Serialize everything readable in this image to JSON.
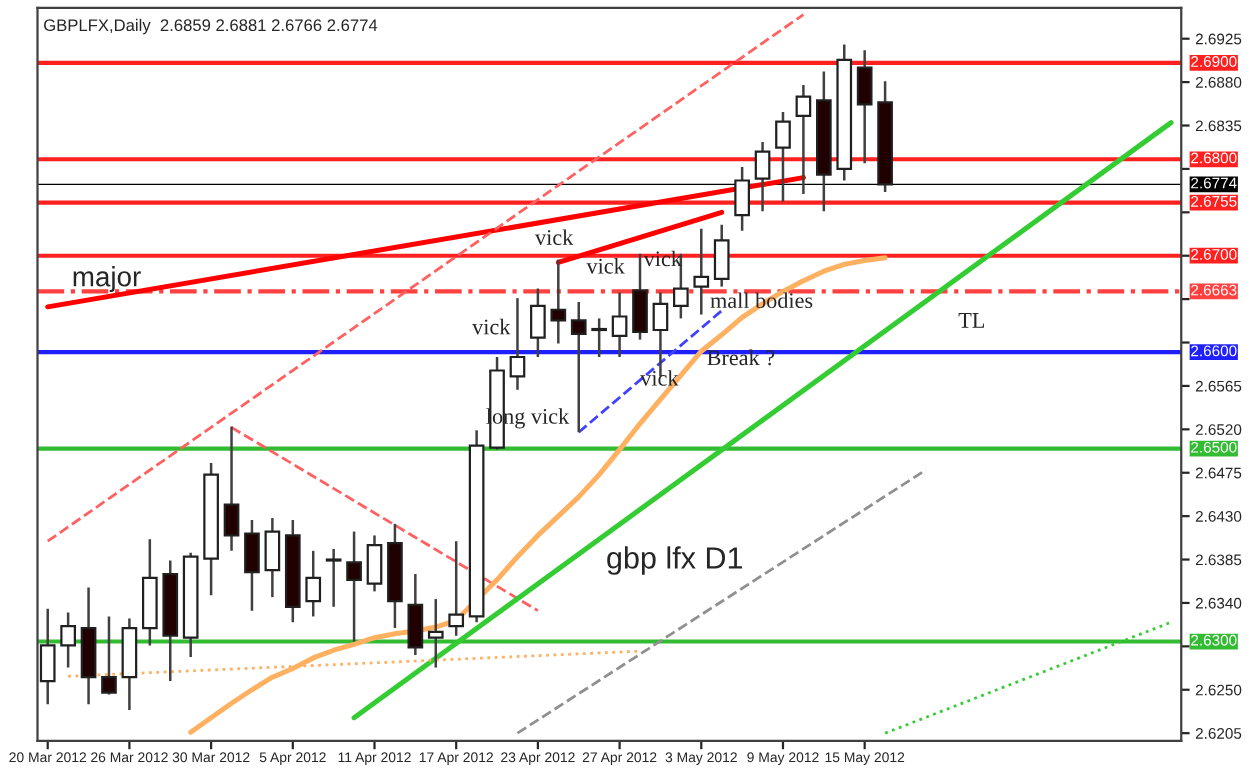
{
  "chart_data": {
    "type": "candlestick",
    "title": "GBPLFX,Daily  2.6859 2.6881 2.6766 2.6774",
    "categories": [
      "20 Mar 2012",
      null,
      null,
      null,
      "26 Mar 2012",
      null,
      null,
      null,
      "30 Mar 2012",
      null,
      null,
      null,
      "5 Apr 2012",
      null,
      null,
      null,
      "11 Apr 2012",
      null,
      null,
      null,
      "17 Apr 2012",
      null,
      null,
      null,
      "23 Apr 2012",
      null,
      null,
      null,
      "27 Apr 2012",
      null,
      null,
      null,
      "3 May 2012",
      null,
      null,
      null,
      "9 May 2012",
      null,
      null,
      null,
      "15 May 2012",
      null,
      null,
      null,
      null,
      null,
      null,
      null,
      null,
      null,
      null,
      null,
      null,
      null,
      null,
      null
    ],
    "ohlc": [
      [
        2.6259,
        2.6334,
        2.6235,
        2.6296
      ],
      [
        2.6296,
        2.633,
        2.6273,
        2.6316
      ],
      [
        2.6314,
        2.6356,
        2.6235,
        2.6263
      ],
      [
        2.6263,
        2.6326,
        2.6245,
        2.6247
      ],
      [
        2.6263,
        2.6324,
        2.6229,
        2.6314
      ],
      [
        2.6314,
        2.6406,
        2.6296,
        2.6366
      ],
      [
        2.637,
        2.6384,
        2.6259,
        2.6306
      ],
      [
        2.6304,
        2.6392,
        2.6284,
        2.6388
      ],
      [
        2.6386,
        2.6485,
        2.6348,
        2.6473
      ],
      [
        2.6442,
        2.6523,
        2.6394,
        2.641
      ],
      [
        2.6412,
        2.6426,
        2.6332,
        2.6372
      ],
      [
        2.6374,
        2.6428,
        2.6346,
        2.6414
      ],
      [
        2.641,
        2.6426,
        2.632,
        2.6336
      ],
      [
        2.6342,
        2.6394,
        2.6326,
        2.6366
      ],
      [
        2.6384,
        2.6396,
        2.6336,
        2.6385
      ],
      [
        2.6382,
        2.6414,
        2.63,
        2.6364
      ],
      [
        2.636,
        2.641,
        2.6352,
        2.64
      ],
      [
        2.6402,
        2.6422,
        2.6314,
        2.6342
      ],
      [
        2.6338,
        2.637,
        2.6286,
        2.6294
      ],
      [
        2.6304,
        2.6344,
        2.6273,
        2.631
      ],
      [
        2.6316,
        2.6404,
        2.6306,
        2.6328
      ],
      [
        2.6326,
        2.6519,
        2.632,
        2.6503
      ],
      [
        2.6501,
        2.6595,
        2.6499,
        2.6581
      ],
      [
        2.6575,
        2.6656,
        2.6561,
        2.6595
      ],
      [
        2.6615,
        2.6666,
        2.6595,
        2.6648
      ],
      [
        2.6644,
        2.6696,
        2.6609,
        2.6633
      ],
      [
        2.6633,
        2.6652,
        2.6517,
        2.6619
      ],
      [
        2.6623,
        2.6635,
        2.6595,
        2.6624
      ],
      [
        2.6617,
        2.6662,
        2.6595,
        2.6637
      ],
      [
        2.6664,
        2.6702,
        2.6613,
        2.6621
      ],
      [
        2.6623,
        2.6662,
        2.6575,
        2.665
      ],
      [
        2.6648,
        2.6702,
        2.6635,
        2.6666
      ],
      [
        2.6668,
        2.6728,
        2.6639,
        2.6678
      ],
      [
        2.6676,
        2.6732,
        2.6668,
        2.6716
      ],
      [
        2.6742,
        2.6792,
        2.6726,
        2.6778
      ],
      [
        2.678,
        2.6818,
        2.6746,
        2.6808
      ],
      [
        2.6812,
        2.6849,
        2.6756,
        2.6839
      ],
      [
        2.6845,
        2.6877,
        2.6764,
        2.6865
      ],
      [
        2.6861,
        2.6891,
        2.6746,
        2.6784
      ],
      [
        2.679,
        2.6919,
        2.6778,
        2.6903
      ],
      [
        2.6895,
        2.6913,
        2.6796,
        2.6857
      ],
      [
        2.6859,
        2.6881,
        2.6766,
        2.6774
      ],
      null,
      null,
      null,
      null,
      null,
      null,
      null,
      null,
      null,
      null,
      null,
      null,
      null,
      null
    ],
    "series": [
      {
        "type": "line",
        "color": "#ff0000",
        "line_style": "solid",
        "values": [
          2.6647,
          null,
          null,
          null,
          null,
          null,
          null,
          null,
          null,
          null,
          null,
          null,
          null,
          null,
          null,
          null,
          null,
          null,
          null,
          null,
          null,
          null,
          null,
          null,
          null,
          null,
          null,
          null,
          null,
          null,
          null,
          null,
          null,
          null,
          null,
          null,
          null,
          2.6781,
          null,
          null,
          null,
          null,
          null,
          null,
          null,
          null,
          null,
          null,
          null,
          null,
          null,
          null,
          null,
          null,
          null,
          null
        ]
      },
      {
        "type": "line",
        "color": "#ff0000",
        "line_style": "solid",
        "values": [
          null,
          null,
          null,
          null,
          null,
          null,
          null,
          null,
          null,
          null,
          null,
          null,
          null,
          null,
          null,
          null,
          null,
          null,
          null,
          null,
          null,
          null,
          null,
          null,
          null,
          2.6693,
          null,
          null,
          null,
          null,
          null,
          null,
          null,
          2.6745,
          null,
          null,
          null,
          null,
          null,
          null,
          null,
          null,
          null,
          null,
          null,
          null,
          null,
          null,
          null,
          null,
          null,
          null,
          null,
          null,
          null,
          null
        ]
      },
      {
        "type": "line",
        "color": "#ff6060",
        "line_style": "dashed",
        "values": [
          2.6404,
          null,
          null,
          null,
          null,
          null,
          null,
          null,
          null,
          null,
          null,
          null,
          null,
          null,
          null,
          null,
          null,
          null,
          null,
          null,
          null,
          null,
          null,
          null,
          null,
          null,
          null,
          null,
          null,
          null,
          null,
          null,
          null,
          null,
          null,
          null,
          null,
          2.695,
          null,
          null,
          null,
          null,
          null,
          null,
          null,
          null,
          null,
          null,
          null,
          null,
          null,
          null,
          null,
          null,
          null,
          null
        ]
      },
      {
        "type": "line",
        "color": "#ff6060",
        "line_style": "dashed",
        "values": [
          null,
          null,
          null,
          null,
          null,
          null,
          null,
          null,
          null,
          2.6522,
          null,
          null,
          null,
          null,
          null,
          null,
          null,
          null,
          null,
          null,
          null,
          null,
          null,
          null,
          2.6332,
          null,
          null,
          null,
          null,
          null,
          null,
          null,
          null,
          null,
          null,
          null,
          null,
          null,
          null,
          null,
          null,
          null,
          null,
          null,
          null,
          null,
          null,
          null,
          null,
          null,
          null,
          null,
          null,
          null,
          null,
          null
        ]
      },
      {
        "type": "line",
        "color": "#4040ff",
        "line_style": "dashed",
        "values": [
          null,
          null,
          null,
          null,
          null,
          null,
          null,
          null,
          null,
          null,
          null,
          null,
          null,
          null,
          null,
          null,
          null,
          null,
          null,
          null,
          null,
          null,
          null,
          null,
          null,
          null,
          2.6517,
          null,
          null,
          null,
          null,
          null,
          null,
          2.6643,
          null,
          null,
          null,
          null,
          null,
          null,
          null,
          null,
          null,
          null,
          null,
          null,
          null,
          null,
          null,
          null,
          null,
          null,
          null,
          null,
          null,
          null
        ]
      },
      {
        "type": "line",
        "color": "#33cc33",
        "line_style": "solid",
        "values": [
          null,
          null,
          null,
          null,
          null,
          null,
          null,
          null,
          null,
          null,
          null,
          null,
          null,
          null,
          null,
          2.6221,
          null,
          null,
          null,
          null,
          null,
          null,
          null,
          null,
          null,
          null,
          null,
          null,
          null,
          null,
          null,
          null,
          null,
          null,
          null,
          null,
          null,
          null,
          null,
          null,
          null,
          null,
          null,
          null,
          null,
          null,
          null,
          null,
          null,
          null,
          null,
          null,
          null,
          null,
          null,
          2.6838
        ]
      },
      {
        "type": "line",
        "color": "#ffb060",
        "line_style": "solid",
        "values": [
          null,
          null,
          null,
          null,
          null,
          null,
          null,
          2.6206,
          2.6221,
          2.6236,
          2.625,
          2.6263,
          2.6272,
          2.6283,
          2.6291,
          2.6297,
          2.6304,
          2.6308,
          2.6311,
          2.6315,
          2.6322,
          null,
          2.6364,
          2.6388,
          2.641,
          2.643,
          2.645,
          2.6473,
          2.6499,
          2.6526,
          2.6551,
          2.6576,
          2.6601,
          2.6618,
          2.6636,
          2.665,
          2.6663,
          2.6674,
          2.6684,
          2.6691,
          2.6695,
          2.6698,
          null,
          null,
          null,
          null,
          null,
          null,
          null,
          null,
          null,
          null,
          null,
          null,
          null,
          null
        ]
      },
      {
        "type": "line",
        "color": "#ffb060",
        "line_style": "dotted",
        "values": [
          null,
          2.6264,
          null,
          null,
          null,
          null,
          null,
          null,
          null,
          null,
          null,
          null,
          null,
          null,
          null,
          null,
          null,
          null,
          null,
          null,
          null,
          null,
          null,
          null,
          null,
          null,
          null,
          null,
          null,
          2.629,
          null,
          null,
          null,
          null,
          null,
          null,
          null,
          null,
          null,
          null,
          null,
          null,
          null,
          null,
          null,
          null,
          null,
          null,
          null,
          null,
          null,
          null,
          null,
          null,
          null,
          null
        ]
      },
      {
        "type": "line",
        "color": "#909090",
        "line_style": "dashed",
        "values": [
          null,
          null,
          null,
          null,
          null,
          null,
          null,
          null,
          null,
          null,
          null,
          null,
          null,
          null,
          null,
          null,
          null,
          null,
          null,
          null,
          null,
          null,
          null,
          2.6205,
          null,
          null,
          null,
          null,
          null,
          null,
          null,
          null,
          null,
          null,
          null,
          null,
          null,
          null,
          null,
          null,
          null,
          null,
          null,
          2.6478,
          null,
          null,
          null,
          null,
          null,
          null,
          null,
          null,
          null,
          null,
          null,
          null
        ]
      },
      {
        "type": "line",
        "color": "#33cc33",
        "line_style": "dotted",
        "values": [
          null,
          null,
          null,
          null,
          null,
          null,
          null,
          null,
          null,
          null,
          null,
          null,
          null,
          null,
          null,
          null,
          null,
          null,
          null,
          null,
          null,
          null,
          null,
          null,
          null,
          null,
          null,
          null,
          null,
          null,
          null,
          null,
          null,
          null,
          null,
          null,
          null,
          null,
          null,
          null,
          null,
          2.6205,
          null,
          null,
          null,
          null,
          null,
          null,
          null,
          null,
          null,
          null,
          null,
          null,
          null,
          2.632
        ]
      }
    ],
    "ylim": [
      2.6197,
      2.6957
    ],
    "yticks": [
      {
        "value": 2.6205,
        "label": "2.6205"
      },
      {
        "value": 2.625,
        "label": "2.6250"
      },
      {
        "value": 2.6295,
        "label": null
      },
      {
        "value": 2.634,
        "label": "2.6340"
      },
      {
        "value": 2.6385,
        "label": "2.6385"
      },
      {
        "value": 2.643,
        "label": "2.6430"
      },
      {
        "value": 2.6475,
        "label": "2.6475"
      },
      {
        "value": 2.652,
        "label": "2.6520"
      },
      {
        "value": 2.6565,
        "label": "2.6565"
      },
      {
        "value": 2.661,
        "label": null
      },
      {
        "value": 2.6655,
        "label": null
      },
      {
        "value": 2.67,
        "label": null
      },
      {
        "value": 2.6745,
        "label": null
      },
      {
        "value": 2.679,
        "label": null
      },
      {
        "value": 2.6835,
        "label": "2.6835"
      },
      {
        "value": 2.688,
        "label": "2.6880"
      },
      {
        "value": 2.6925,
        "label": "2.6925"
      }
    ],
    "ref_lines": [
      {
        "axis": "y",
        "value": 2.69,
        "label": "2.6900",
        "color": "#ff2020",
        "line_style": "solid"
      },
      {
        "axis": "y",
        "value": 2.68,
        "label": "2.6800",
        "color": "#ff2020",
        "line_style": "solid"
      },
      {
        "axis": "y",
        "value": 2.6774,
        "label": "2.6774",
        "color": "#000000",
        "line_style": "solid"
      },
      {
        "axis": "y",
        "value": 2.6755,
        "label": "2.6755",
        "color": "#ff2020",
        "line_style": "solid"
      },
      {
        "axis": "y",
        "value": 2.67,
        "label": "2.6700",
        "color": "#ff2020",
        "line_style": "solid"
      },
      {
        "axis": "y",
        "value": 2.6663,
        "label": "2.6663",
        "color": "#ff4040",
        "line_style": "dashed"
      },
      {
        "axis": "y",
        "value": 2.66,
        "label": "2.6600",
        "color": "#2020ff",
        "line_style": "solid"
      },
      {
        "axis": "y",
        "value": 2.65,
        "label": "2.6500",
        "color": "#33bb33",
        "line_style": "solid"
      },
      {
        "axis": "y",
        "value": 2.63,
        "label": "2.6300",
        "color": "#33bb33",
        "line_style": "solid"
      }
    ],
    "annotations": [
      "major",
      "vick",
      "vick",
      "vick",
      "vick",
      "vick",
      "long vick",
      "mall bodies",
      "Break ?",
      "TL",
      "gbp lfx D1"
    ],
    "grid": false
  }
}
